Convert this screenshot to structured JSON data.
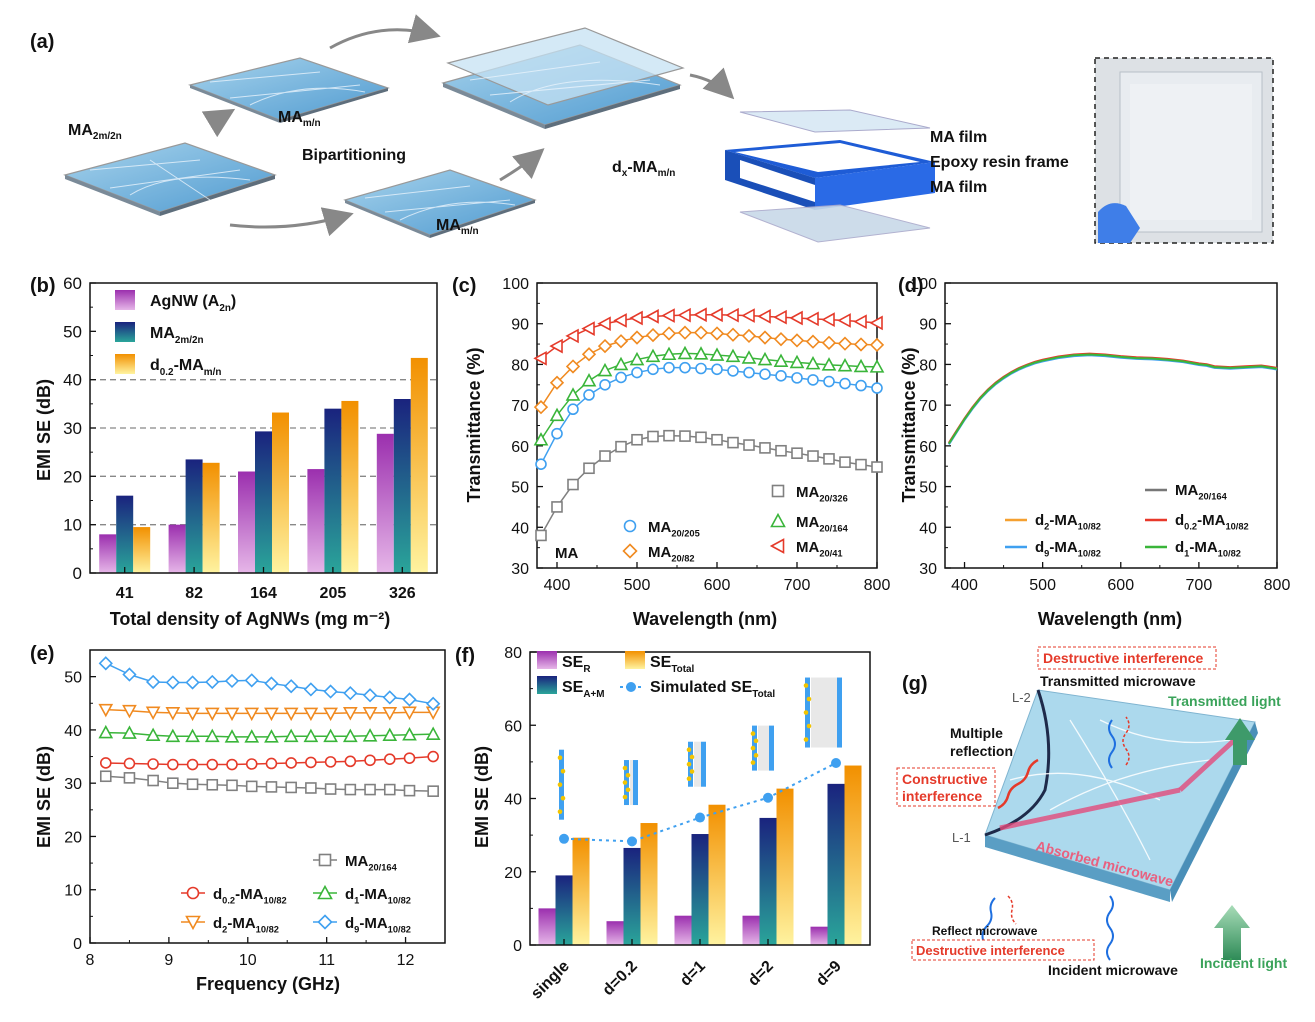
{
  "panels": {
    "a": {
      "label": "(a)",
      "ma2m": "MA",
      "ma2m_sub": "2m/2n",
      "mamn_top": "MA",
      "mamn_top_sub": "m/n",
      "mamn_bot": "MA",
      "mamn_bot_sub": "m/n",
      "bipartitioning": "Bipartitioning",
      "dx_pre": "d",
      "dx_sub": "x",
      "dx_mid": "-MA",
      "dx_sub2": "m/n",
      "ma_film_top": "MA film",
      "epoxy": "Epoxy resin frame",
      "ma_film_bot": "MA film"
    },
    "g": {
      "label": "(g)",
      "destructive_top": "Destructive interference",
      "transmitted_mw": "Transmitted microwave",
      "transmitted_light": "Transmitted light",
      "multiple": "Multiple",
      "reflection": "reflection",
      "constructive1": "Constructive",
      "constructive2": "interference",
      "l1": "L-1",
      "l2": "L-2",
      "absorbed": "Absorbed microwave",
      "reflect_mw": "Reflect microwave",
      "destructive_bot": "Destructive interference",
      "incident_mw": "Incident microwave",
      "incident_light": "Incident light"
    }
  },
  "chart_data": [
    {
      "id": "b",
      "label": "(b)",
      "type": "bar",
      "xlabel": "Total density of AgNWs (mg m⁻²)",
      "ylabel": "EMI SE (dB)",
      "ylim": [
        0,
        60
      ],
      "categories": [
        "41",
        "82",
        "164",
        "205",
        "326"
      ],
      "gridlines": [
        10,
        20,
        30,
        40
      ],
      "series": [
        {
          "name": "AgNW (A",
          "sub": "2n",
          "post": ")",
          "color": "#9b2fae",
          "values": [
            8,
            10,
            21,
            21.5,
            28.8
          ]
        },
        {
          "name": "MA",
          "sub": "2m/2n",
          "post": "",
          "color": "#1a2a7a",
          "values": [
            16,
            23.5,
            29.3,
            34,
            36
          ]
        },
        {
          "name": "d",
          "sub": "0.2",
          "post": "-MA",
          "sub2": "m/n",
          "color": "#f2a000",
          "values": [
            9.5,
            22.8,
            33.2,
            35.6,
            44.5
          ]
        }
      ]
    },
    {
      "id": "c",
      "label": "(c)",
      "type": "line",
      "xlabel": "Wavelength (nm)",
      "ylabel": "Transmittance (%)",
      "xlim": [
        375,
        800
      ],
      "ylim": [
        30,
        100
      ],
      "annotation": "MA",
      "x": [
        380,
        400,
        420,
        440,
        460,
        480,
        500,
        520,
        540,
        560,
        580,
        600,
        620,
        640,
        660,
        680,
        700,
        720,
        740,
        760,
        780,
        800
      ],
      "series": [
        {
          "name": "MA",
          "sub": "20/326",
          "color": "#808080",
          "marker": "square",
          "values": [
            38,
            45,
            50.5,
            54.5,
            57.5,
            59.8,
            61.5,
            62.3,
            62.5,
            62.4,
            62.1,
            61.5,
            60.8,
            60.2,
            59.5,
            58.8,
            58.2,
            57.5,
            56.8,
            56,
            55.4,
            54.8
          ]
        },
        {
          "name": "MA",
          "sub": "20/205",
          "color": "#3fa0f0",
          "marker": "circle",
          "values": [
            55.5,
            63,
            69,
            72.5,
            75,
            76.8,
            78,
            78.8,
            79.2,
            79.2,
            79,
            78.8,
            78.4,
            78,
            77.6,
            77.2,
            76.7,
            76.2,
            75.8,
            75.3,
            74.8,
            74.2
          ]
        },
        {
          "name": "MA",
          "sub": "20/164",
          "color": "#3ab53a",
          "marker": "triangle",
          "values": [
            61.5,
            67.5,
            72.5,
            76,
            78.5,
            80,
            81.2,
            82,
            82.5,
            82.7,
            82.6,
            82.3,
            82,
            81.6,
            81.2,
            80.8,
            80.5,
            80.2,
            79.9,
            79.7,
            79.5,
            79.4
          ]
        },
        {
          "name": "MA",
          "sub": "20/82",
          "color": "#f08a20",
          "marker": "diamond",
          "values": [
            69.5,
            75.5,
            79.5,
            82.5,
            84.5,
            85.7,
            86.6,
            87.2,
            87.6,
            87.8,
            87.8,
            87.6,
            87.3,
            87,
            86.6,
            86.2,
            85.9,
            85.6,
            85.3,
            85.1,
            84.9,
            84.8
          ]
        },
        {
          "name": "MA",
          "sub": "20/41",
          "color": "#e53a2a",
          "marker": "tri-left",
          "values": [
            81.5,
            84.5,
            87,
            88.8,
            90,
            90.8,
            91.4,
            91.8,
            92,
            92.1,
            92.2,
            92.2,
            92.1,
            92,
            91.8,
            91.6,
            91.4,
            91.2,
            91,
            90.8,
            90.5,
            90.2
          ]
        }
      ]
    },
    {
      "id": "d",
      "label": "(d)",
      "type": "line",
      "xlabel": "Wavelength (nm)",
      "ylabel": "Transmittance (%)",
      "xlim": [
        375,
        800
      ],
      "ylim": [
        30,
        100
      ],
      "x": [
        380,
        390,
        400,
        410,
        420,
        430,
        440,
        450,
        460,
        470,
        480,
        490,
        500,
        520,
        540,
        560,
        580,
        600,
        620,
        640,
        660,
        680,
        700,
        710,
        720,
        740,
        760,
        780,
        790,
        800
      ],
      "base": [
        60.5,
        63.5,
        66.5,
        69.2,
        71.6,
        73.6,
        75.3,
        76.7,
        77.9,
        78.9,
        79.7,
        80.4,
        80.9,
        81.7,
        82.2,
        82.4,
        82.2,
        81.8,
        81.5,
        81.4,
        81.1,
        80.7,
        80.0,
        79.8,
        79.3,
        79.1,
        79.3,
        79.5,
        79.2,
        78.9
      ],
      "series": [
        {
          "name": "MA",
          "sub": "20/164",
          "color": "#777777",
          "offset": 0
        },
        {
          "name": "d",
          "sub": "2",
          "post": "-MA",
          "sub2": "10/82",
          "color": "#f5a030",
          "offset": 0.15
        },
        {
          "name": "d",
          "sub": "0.2",
          "post": "-MA",
          "sub2": "10/82",
          "color": "#e8382a",
          "offset": 0.25
        },
        {
          "name": "d",
          "sub": "9",
          "post": "-MA",
          "sub2": "10/82",
          "color": "#3fa0f0",
          "offset": -0.15
        },
        {
          "name": "d",
          "sub": "1",
          "post": "-MA",
          "sub2": "10/82",
          "color": "#3ab53a",
          "offset": 0.05
        }
      ]
    },
    {
      "id": "e",
      "label": "(e)",
      "type": "line",
      "xlabel": "Frequency (GHz)",
      "ylabel": "EMI SE (dB)",
      "xlim": [
        8,
        12.5
      ],
      "ylim": [
        0,
        55
      ],
      "x": [
        8.2,
        8.5,
        8.8,
        9.05,
        9.3,
        9.55,
        9.8,
        10.05,
        10.3,
        10.55,
        10.8,
        11.05,
        11.3,
        11.55,
        11.8,
        12.05,
        12.35
      ],
      "series": [
        {
          "name": "MA",
          "sub": "20/164",
          "color": "#808080",
          "marker": "square",
          "values": [
            31.3,
            31,
            30.5,
            30,
            29.8,
            29.7,
            29.6,
            29.4,
            29.3,
            29.2,
            29.1,
            28.9,
            28.8,
            28.8,
            28.8,
            28.6,
            28.5
          ]
        },
        {
          "name": "d",
          "sub": "0.2",
          "post": "-MA",
          "sub2": "10/82",
          "color": "#e53a2a",
          "marker": "circle",
          "values": [
            33.8,
            33.7,
            33.6,
            33.5,
            33.5,
            33.5,
            33.5,
            33.6,
            33.7,
            33.8,
            33.9,
            34,
            34.1,
            34.3,
            34.5,
            34.7,
            35
          ]
        },
        {
          "name": "d",
          "sub": "1",
          "post": "-MA",
          "sub2": "10/82",
          "color": "#3ab53a",
          "marker": "triangle",
          "values": [
            39.5,
            39.4,
            39,
            38.8,
            38.8,
            38.8,
            38.7,
            38.7,
            38.7,
            38.8,
            38.8,
            38.8,
            38.8,
            38.9,
            39,
            39.1,
            39.2
          ]
        },
        {
          "name": "d",
          "sub": "2",
          "post": "-MA",
          "sub2": "10/82",
          "color": "#f08a20",
          "marker": "tri-down",
          "values": [
            43.8,
            43.6,
            43.3,
            43.2,
            43.1,
            43.1,
            43.1,
            43.1,
            43.1,
            43.1,
            43.1,
            43.1,
            43.2,
            43.2,
            43.2,
            43.3,
            43.3
          ]
        },
        {
          "name": "d",
          "sub": "9",
          "post": "-MA",
          "sub2": "10/82",
          "color": "#3fa0f0",
          "marker": "diamond",
          "values": [
            52.5,
            50.4,
            49,
            48.9,
            48.9,
            49,
            49.2,
            49.3,
            48.7,
            48.2,
            47.6,
            47.2,
            46.9,
            46.5,
            46.1,
            45.7,
            44.9
          ]
        }
      ]
    },
    {
      "id": "f",
      "label": "(f)",
      "type": "bar",
      "xlabel": "",
      "ylabel": "EMI SE (dB)",
      "ylim": [
        0,
        80
      ],
      "categories": [
        "single",
        "d=0.2",
        "d=1",
        "d=2",
        "d=9"
      ],
      "series": [
        {
          "name": "SE",
          "sub": "R",
          "color": "#9b2fae",
          "values": [
            10,
            6.5,
            8,
            8,
            5
          ]
        },
        {
          "name": "SE",
          "sub": "A+M",
          "color": "#1a2a7a",
          "values": [
            19,
            26.5,
            30.3,
            34.7,
            44
          ]
        },
        {
          "name": "SE",
          "sub": "Total",
          "color": "#f2a000",
          "values": [
            29.3,
            33.3,
            38.3,
            42.7,
            49
          ]
        }
      ],
      "simulated": {
        "name": "Simulated SE",
        "sub": "Total",
        "color": "#3fa0f0",
        "values": [
          29,
          28.3,
          34.8,
          40.2,
          49.7
        ]
      }
    }
  ]
}
